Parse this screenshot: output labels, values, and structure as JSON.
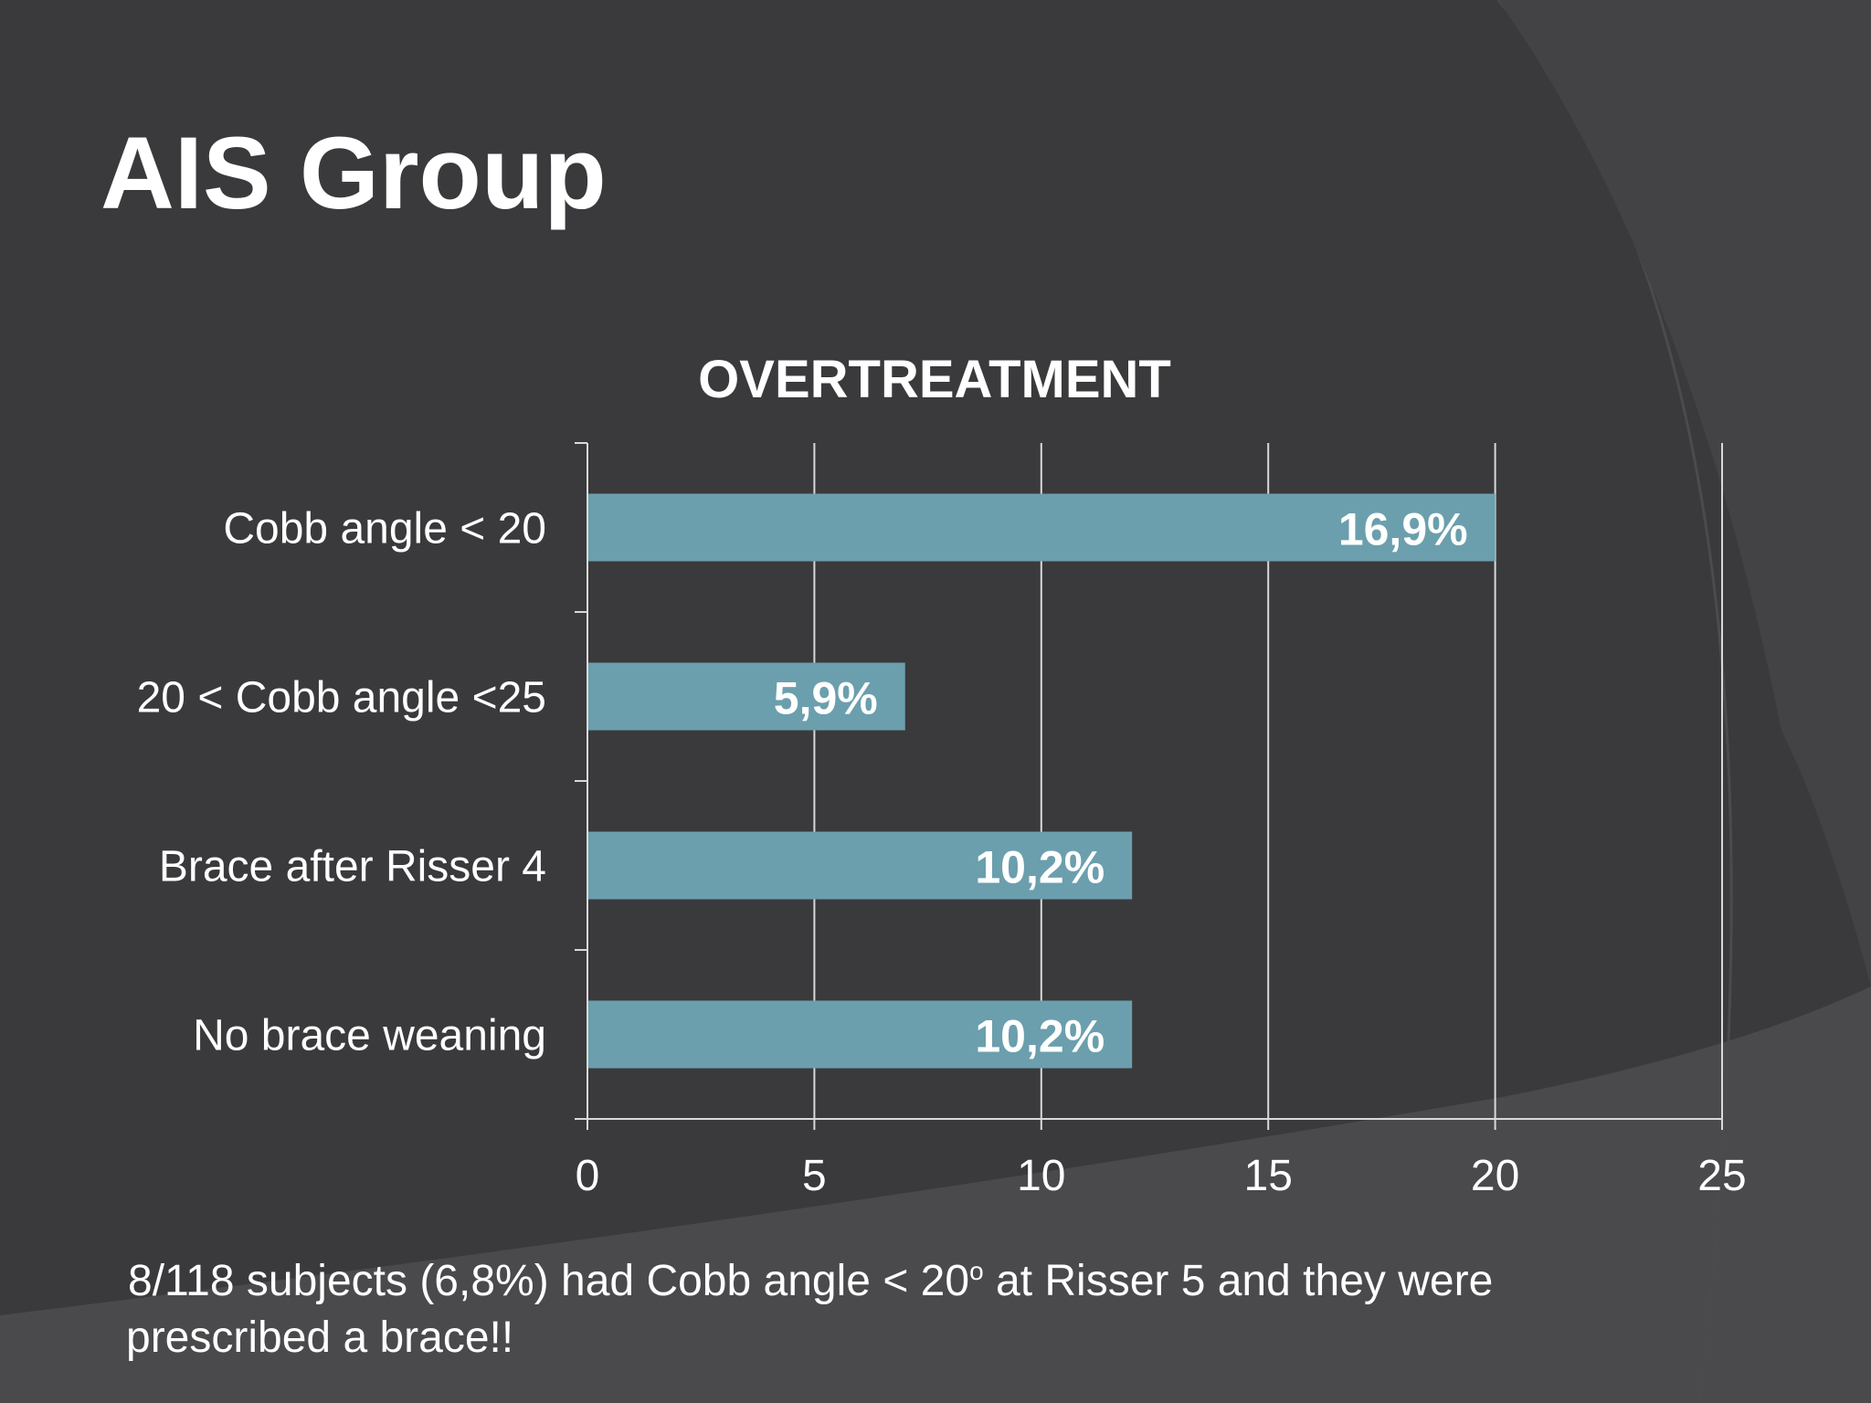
{
  "slide": {
    "title": "AIS Group",
    "footnote": {
      "line1_before": "8/118 subjects (6,8%) had Cobb angle < 20",
      "superscript": "o",
      "line1_after": " at Risser 5 and they were",
      "line2": "prescribed a brace!!"
    },
    "colors": {
      "background": "#3a3a3c",
      "bar": "#6b9fad",
      "text": "#ffffff",
      "gridline": "#d9d9d9"
    }
  },
  "chart_data": {
    "type": "bar",
    "orientation": "horizontal",
    "title": "OVERTREATMENT",
    "categories": [
      "Cobb angle < 20",
      "20 < Cobb angle <25",
      "Brace after Risser 4",
      "No brace weaning"
    ],
    "values": [
      20,
      7,
      12,
      12
    ],
    "data_labels": [
      "16,9%",
      "5,9%",
      "10,2%",
      "10,2%"
    ],
    "xlim": [
      0,
      25
    ],
    "xticks": [
      "0",
      "5",
      "10",
      "15",
      "20",
      "25"
    ],
    "grid": "vertical",
    "legend": "none",
    "xlabel": "",
    "ylabel": ""
  }
}
